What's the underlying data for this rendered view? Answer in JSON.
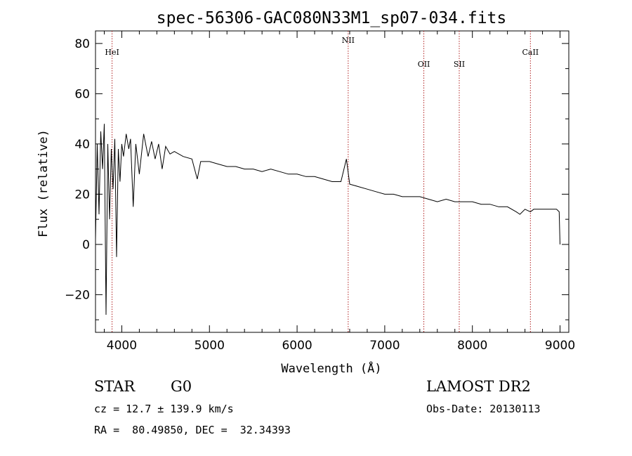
{
  "chart_data": {
    "type": "line",
    "title": "spec-56306-GAC080N33M1_sp07-034.fits",
    "xlabel": "Wavelength (Å)",
    "ylabel": "Flux (relative)",
    "xlim": [
      3700,
      9100
    ],
    "ylim": [
      -35,
      85
    ],
    "xticks": [
      4000,
      5000,
      6000,
      7000,
      8000,
      9000
    ],
    "yticks": [
      -20,
      0,
      20,
      40,
      60,
      80
    ],
    "grid": false,
    "series": [
      {
        "x": [
          3700,
          3720,
          3740,
          3760,
          3780,
          3800,
          3820,
          3840,
          3860,
          3880,
          3900,
          3920,
          3940,
          3960,
          3980,
          4000,
          4020,
          4050,
          4080,
          4100,
          4130,
          4160,
          4200,
          4250,
          4300,
          4340,
          4380,
          4420,
          4460,
          4500,
          4550,
          4600,
          4700,
          4800,
          4861,
          4900,
          5000,
          5100,
          5200,
          5300,
          5400,
          5500,
          5600,
          5700,
          5800,
          5900,
          6000,
          6100,
          6200,
          6300,
          6400,
          6500,
          6563,
          6600,
          6700,
          6800,
          6900,
          7000,
          7100,
          7200,
          7300,
          7400,
          7500,
          7600,
          7700,
          7800,
          7900,
          8000,
          8100,
          8200,
          8300,
          8400,
          8500,
          8542,
          8600,
          8662,
          8700,
          8800,
          8900,
          8960,
          8990,
          9000
        ],
        "y": [
          2,
          40,
          12,
          45,
          30,
          48,
          -28,
          40,
          10,
          38,
          22,
          42,
          -5,
          38,
          25,
          40,
          35,
          44,
          38,
          42,
          15,
          40,
          28,
          44,
          35,
          41,
          34,
          40,
          30,
          39,
          36,
          37,
          35,
          34,
          26,
          33,
          33,
          32,
          31,
          31,
          30,
          30,
          29,
          30,
          29,
          28,
          28,
          27,
          27,
          26,
          25,
          25,
          34,
          24,
          23,
          22,
          21,
          20,
          20,
          19,
          19,
          19,
          18,
          17,
          18,
          17,
          17,
          17,
          16,
          16,
          15,
          15,
          13,
          12,
          14,
          13,
          14,
          14,
          14,
          14,
          13,
          0
        ]
      }
    ],
    "lines": [
      {
        "name": "HeI",
        "x": 3889
      },
      {
        "name": "NII",
        "x": 6583
      },
      {
        "name": "OII",
        "x": 7446
      },
      {
        "name": "SII",
        "x": 7850
      },
      {
        "name": "CaII",
        "x": 8662
      }
    ],
    "colors": {
      "spectrum": "#000000",
      "line_markers": "#b22222"
    }
  },
  "info": {
    "object_class": "STAR",
    "subclass": "G0",
    "cz": "cz = 12.7 ± 139.9 km/s",
    "coords": "RA =  80.49850, DEC =  32.34393",
    "survey": "LAMOST DR2",
    "obs_date": "Obs-Date: 20130113"
  }
}
